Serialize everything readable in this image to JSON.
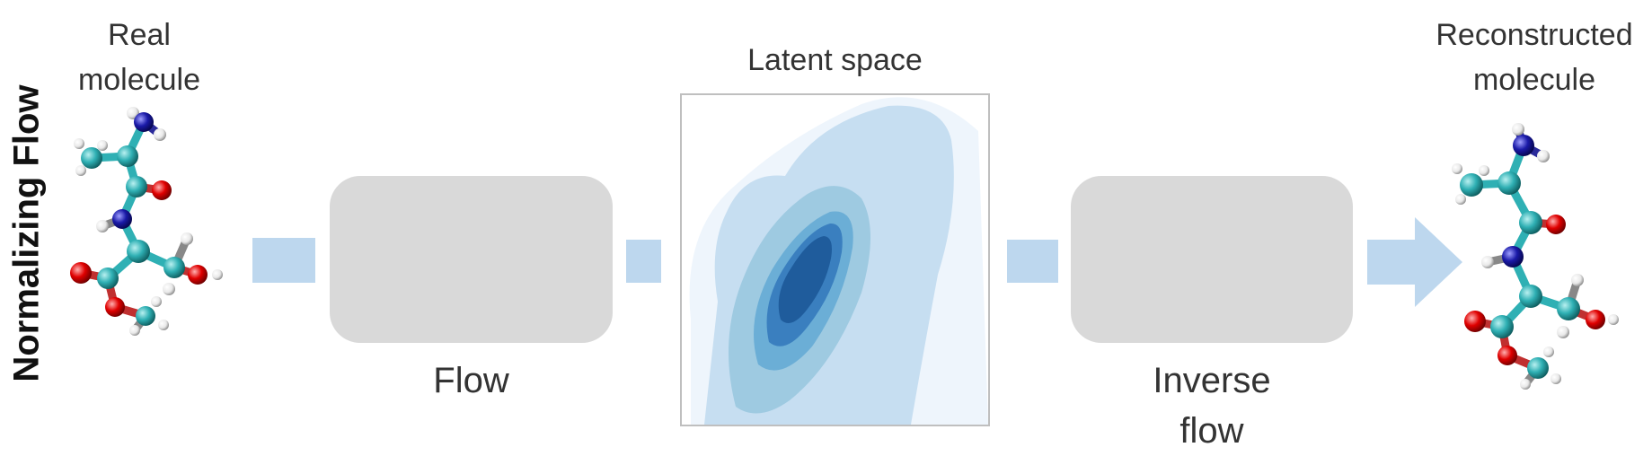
{
  "side_title": "Normalizing Flow",
  "real_molecule": {
    "line1": "Real",
    "line2": "molecule"
  },
  "flow_label": "Flow",
  "latent_label": "Latent space",
  "inverse_flow": {
    "line1": "Inverse",
    "line2": "flow"
  },
  "reconstructed_molecule": {
    "line1": "Reconstructed",
    "line2": "molecule"
  },
  "colors": {
    "box_gray": "#d9d9d9",
    "arrow_blue": "#bdd7ee",
    "carbon": "#2fb0b4",
    "oxygen": "#e00000",
    "nitrogen": "#1a1aa8",
    "hydrogen": "#e8e8e8",
    "contour_levels": [
      "#eef5fc",
      "#c6def1",
      "#9ecae1",
      "#6baed6",
      "#3a7fbf",
      "#1f5c9c"
    ]
  }
}
